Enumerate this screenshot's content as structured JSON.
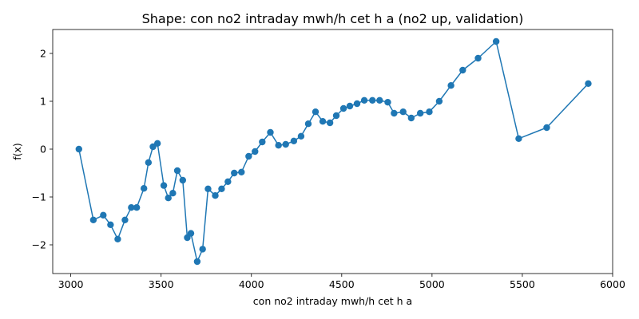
{
  "chart_data": {
    "type": "line",
    "title": "Shape: con no2 intraday mwh/h cet h a (no2 up, validation)",
    "xlabel": "con no2 intraday mwh/h cet h a",
    "ylabel": "f(x)",
    "xlim": [
      2900,
      6000
    ],
    "ylim": [
      -2.6,
      2.5
    ],
    "xticks": [
      3000,
      3500,
      4000,
      4500,
      5000,
      5500,
      6000
    ],
    "yticks": [
      -2,
      -1,
      0,
      1,
      2
    ],
    "ytick_labels": [
      "−2",
      "−1",
      "0",
      "1",
      "2"
    ],
    "grid": false,
    "color": "#1f77b4",
    "marker": "circle",
    "series": [
      {
        "x": [
          3045,
          3125,
          3180,
          3220,
          3260,
          3300,
          3335,
          3365,
          3405,
          3430,
          3455,
          3480,
          3515,
          3540,
          3565,
          3590,
          3620,
          3645,
          3665,
          3700,
          3730,
          3760,
          3800,
          3835,
          3870,
          3905,
          3945,
          3985,
          4020,
          4060,
          4105,
          4150,
          4190,
          4235,
          4275,
          4315,
          4355,
          4395,
          4435,
          4470,
          4510,
          4545,
          4585,
          4625,
          4670,
          4710,
          4755,
          4790,
          4840,
          4885,
          4935,
          4985,
          5040,
          5105,
          5170,
          5255,
          5355,
          5480,
          5635,
          5865
        ],
        "y": [
          0.0,
          -1.48,
          -1.38,
          -1.58,
          -1.88,
          -1.48,
          -1.22,
          -1.22,
          -0.82,
          -0.28,
          0.05,
          0.12,
          -0.76,
          -1.02,
          -0.92,
          -0.45,
          -0.65,
          -1.85,
          -1.76,
          -2.35,
          -2.09,
          -0.83,
          -0.97,
          -0.83,
          -0.68,
          -0.5,
          -0.48,
          -0.15,
          -0.05,
          0.15,
          0.35,
          0.08,
          0.1,
          0.17,
          0.27,
          0.53,
          0.78,
          0.58,
          0.55,
          0.7,
          0.85,
          0.9,
          0.95,
          1.02,
          1.02,
          1.02,
          0.98,
          0.75,
          0.78,
          0.65,
          0.75,
          0.78,
          1.0,
          1.33,
          1.65,
          1.9,
          2.25,
          0.22,
          0.45,
          1.37
        ]
      }
    ]
  }
}
